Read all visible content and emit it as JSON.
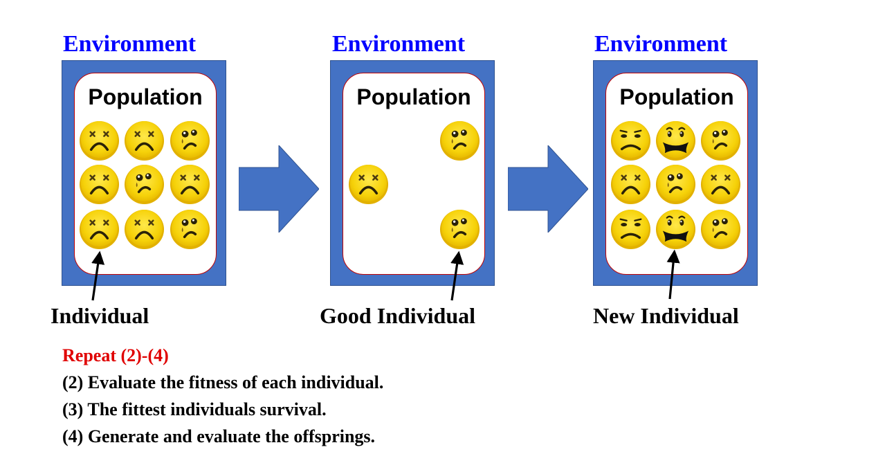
{
  "colors": {
    "environment_title": "#0000ff",
    "environment_fill": "#4472c4",
    "population_border": "#c00000",
    "face_yellow": "#f6d20a",
    "repeat_text": "#e00000"
  },
  "stages": [
    {
      "environment_label": "Environment",
      "population_label": "Population",
      "individual_label": "Individual",
      "faces": [
        "dizzy-face-icon",
        "dizzy-face-icon",
        "crying-face-icon",
        "dizzy-face-icon",
        "crying-face-icon",
        "dizzy-face-icon",
        "dizzy-face-icon",
        "dizzy-face-icon",
        "crying-face-icon"
      ]
    },
    {
      "environment_label": "Environment",
      "population_label": "Population",
      "individual_label": "Good Individual",
      "faces": [
        "crying-face-icon",
        "dizzy-face-icon",
        "crying-face-icon"
      ]
    },
    {
      "environment_label": "Environment",
      "population_label": "Population",
      "individual_label": "New Individual",
      "faces": [
        "frowning-face-icon",
        "grimacing-face-icon",
        "crying-face-icon",
        "dizzy-face-icon",
        "crying-face-icon",
        "dizzy-face-icon",
        "frowning-face-icon",
        "grimacing-face-icon",
        "crying-face-icon"
      ]
    }
  ],
  "steps": {
    "repeat": "Repeat (2)-(4)",
    "step2": "(2) Evaluate the fitness of each individual.",
    "step3": "(3) The fittest individuals survival.",
    "step4": "(4) Generate and evaluate the offsprings."
  }
}
